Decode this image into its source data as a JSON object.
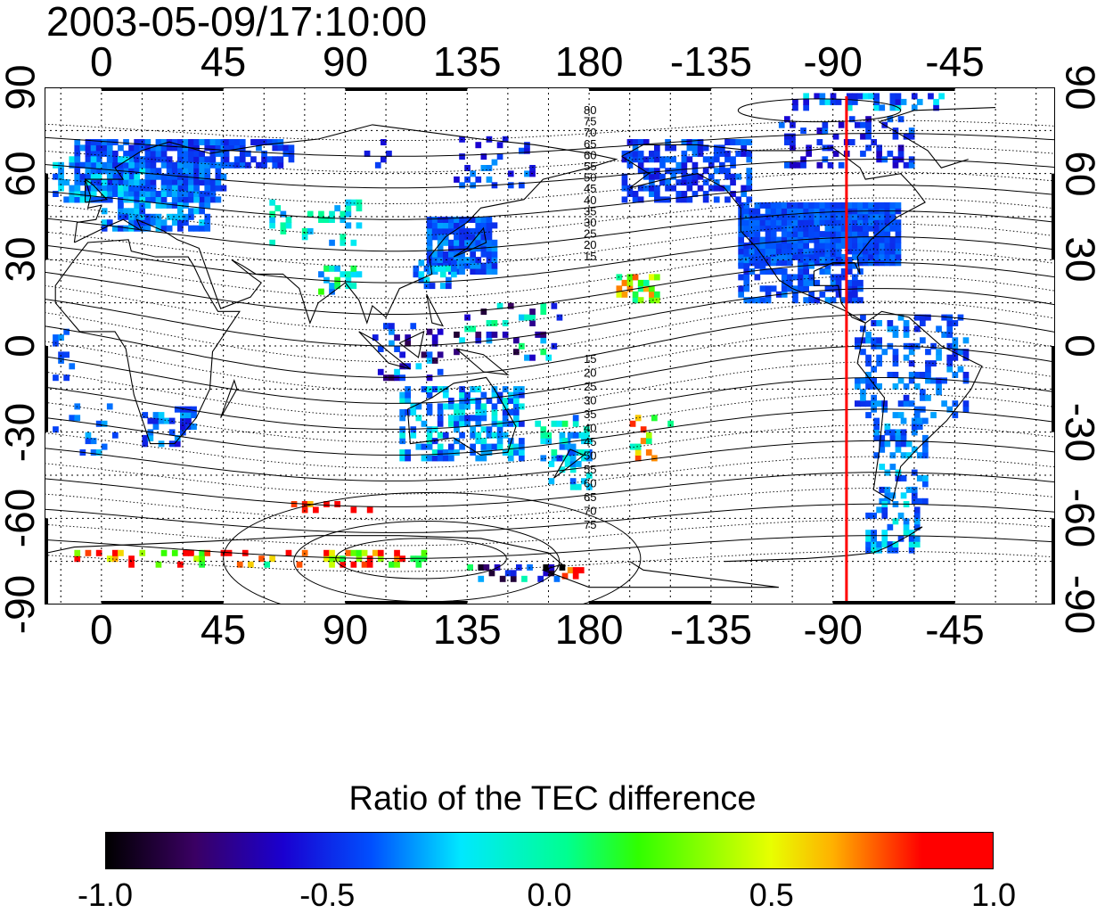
{
  "title": "2003-05-09/17:10:00",
  "colorbar_title": "Ratio of the TEC difference",
  "colorbar_ticks": [
    "-1.0",
    "-0.5",
    "0.0",
    "0.5",
    "1.0"
  ],
  "colors": {
    "meridian_line": "#ff0000",
    "grid": "#000000",
    "coast": "#000000"
  },
  "map": {
    "projection": "cylindrical",
    "central_longitude": 180,
    "lon_range": [
      -21,
      352
    ],
    "lat_range": [
      -90,
      90
    ],
    "grid_step_deg": 15,
    "top_ticks": [
      "0",
      "45",
      "90",
      "135",
      "180",
      "-135",
      "-90",
      "-45"
    ],
    "bottom_ticks": [
      "0",
      "45",
      "90",
      "135",
      "180",
      "-135",
      "-90",
      "-45"
    ],
    "left_ticks": [
      "90",
      "60",
      "30",
      "0",
      "-30",
      "-60",
      "-90"
    ],
    "right_ticks": [
      "90",
      "60",
      "30",
      "0",
      "-30",
      "-60",
      "-90"
    ],
    "meridian_lon": -85,
    "contour_labels_north": [
      "80",
      "75",
      "70",
      "65",
      "60",
      "55",
      "50",
      "45",
      "40",
      "35",
      "30",
      "25",
      "20",
      "15"
    ],
    "contour_labels_south": [
      "15",
      "20",
      "25",
      "30",
      "35",
      "40",
      "45",
      "50",
      "55",
      "60",
      "65",
      "70",
      "75"
    ]
  }
}
